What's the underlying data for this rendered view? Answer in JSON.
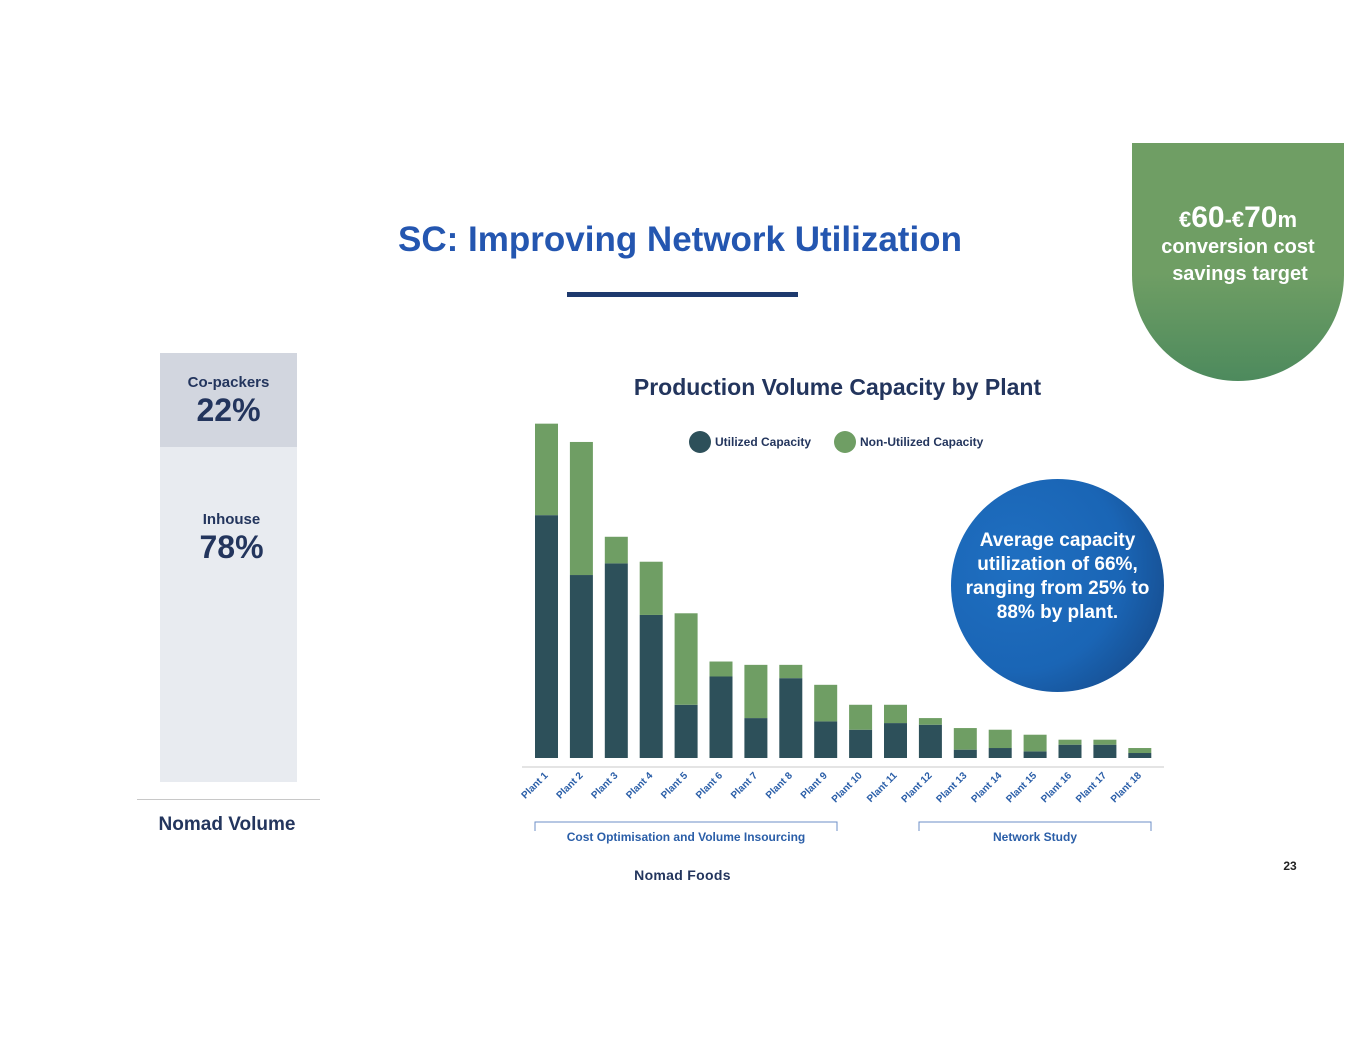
{
  "slide": {
    "title": "SC: Improving Network Utilization",
    "page_number": "23",
    "logo_text": "Nomad Foods"
  },
  "badge": {
    "amount_currency_1": "€",
    "amount_value_1": "60",
    "amount_sep": "-€",
    "amount_value_2": "70",
    "amount_unit": "m",
    "line1": "conversion cost",
    "line2": "savings target"
  },
  "nomad_volume": {
    "copackers_label": "Co-packers",
    "copackers_value": "22%",
    "inhouse_label": "Inhouse",
    "inhouse_value": "78%",
    "caption": "Nomad Volume"
  },
  "callout": {
    "text": "Average capacity utilization of 66%, ranging from 25% to 88% by plant."
  },
  "groups": {
    "left": "Cost Optimisation and Volume Insourcing",
    "right": "Network Study"
  },
  "colors": {
    "utilized": "#2d505a",
    "non_utilized": "#6f9e64",
    "title_blue": "#2456b0",
    "navy": "#23355d"
  },
  "chart_data": {
    "type": "bar",
    "stacked": true,
    "title": "Production Volume Capacity by Plant",
    "categories": [
      "Plant 1",
      "Plant 2",
      "Plant 3",
      "Plant 4",
      "Plant 5",
      "Plant 6",
      "Plant 7",
      "Plant 8",
      "Plant 9",
      "Plant 10",
      "Plant 11",
      "Plant 12",
      "Plant 13",
      "Plant 14",
      "Plant 15",
      "Plant 16",
      "Plant 17",
      "Plant 18"
    ],
    "series": [
      {
        "name": "Utilized Capacity",
        "values": [
          73,
          55,
          58.5,
          43,
          16,
          24.5,
          12,
          24,
          11,
          8.5,
          10.5,
          10,
          2.5,
          3,
          2,
          4,
          4,
          1.5
        ]
      },
      {
        "name": "Non-Utilized Capacity",
        "values": [
          27.5,
          40,
          8,
          16,
          27.5,
          4.5,
          16,
          4,
          11,
          7.5,
          5.5,
          2,
          6.5,
          5.5,
          5,
          1.5,
          1.5,
          1.5
        ]
      }
    ],
    "ylim": [
      0,
      101
    ],
    "grid": false,
    "legend": "top"
  }
}
